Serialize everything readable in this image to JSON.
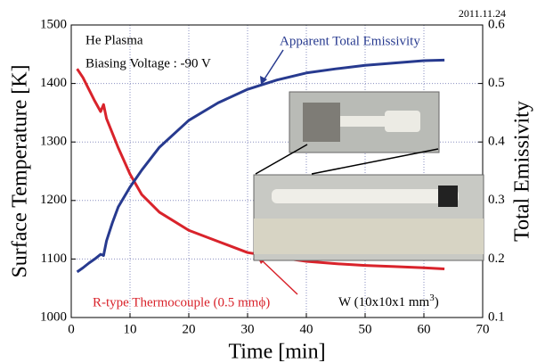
{
  "chart_data": {
    "type": "line",
    "date": "2011.11.24",
    "xlabel": "Time [min]",
    "ylabel": "Surface Temperature [K]",
    "y2label": "Total Emissivity",
    "xlim": [
      0,
      70
    ],
    "xticks": [
      0,
      10,
      20,
      30,
      40,
      50,
      60,
      70
    ],
    "ylim": [
      1000,
      1500
    ],
    "yticks": [
      1000,
      1100,
      1200,
      1300,
      1400,
      1500
    ],
    "y2lim": [
      0.1,
      0.6
    ],
    "y2ticks": [
      0.1,
      0.2,
      0.3,
      0.4,
      0.5,
      0.6
    ],
    "grid": true,
    "annotations": [
      "He Plasma",
      "Biasing Voltage : -90 V"
    ],
    "sample": {
      "text": "W (10x10x1 mm",
      "sup": "3",
      "end": ")"
    },
    "series": [
      {
        "name": "R-type Thermocouple (0.5 mmϕ)",
        "color": "#d9232b",
        "x": [
          1,
          2,
          3,
          4,
          5,
          5.5,
          6,
          7,
          8,
          10,
          12,
          15,
          20,
          25,
          30,
          35,
          40,
          45,
          50,
          55,
          60,
          63.5
        ],
        "values": [
          1425,
          1410,
          1390,
          1370,
          1352,
          1364,
          1340,
          1315,
          1290,
          1245,
          1210,
          1180,
          1149,
          1130,
          1111,
          1103,
          1096,
          1092,
          1089,
          1087,
          1085,
          1083
        ]
      },
      {
        "name": "Apparent Total Emissivity",
        "color": "#273a8f",
        "axis": "y2",
        "x": [
          1,
          2,
          3,
          4,
          5,
          5.5,
          6,
          7,
          8,
          10,
          12,
          15,
          20,
          25,
          30,
          35,
          40,
          45,
          50,
          55,
          60,
          63.5
        ],
        "values": [
          0.178,
          0.185,
          0.193,
          0.2,
          0.208,
          0.206,
          0.231,
          0.262,
          0.289,
          0.323,
          0.352,
          0.391,
          0.437,
          0.467,
          0.49,
          0.506,
          0.518,
          0.525,
          0.531,
          0.535,
          0.539,
          0.54
        ]
      }
    ]
  }
}
